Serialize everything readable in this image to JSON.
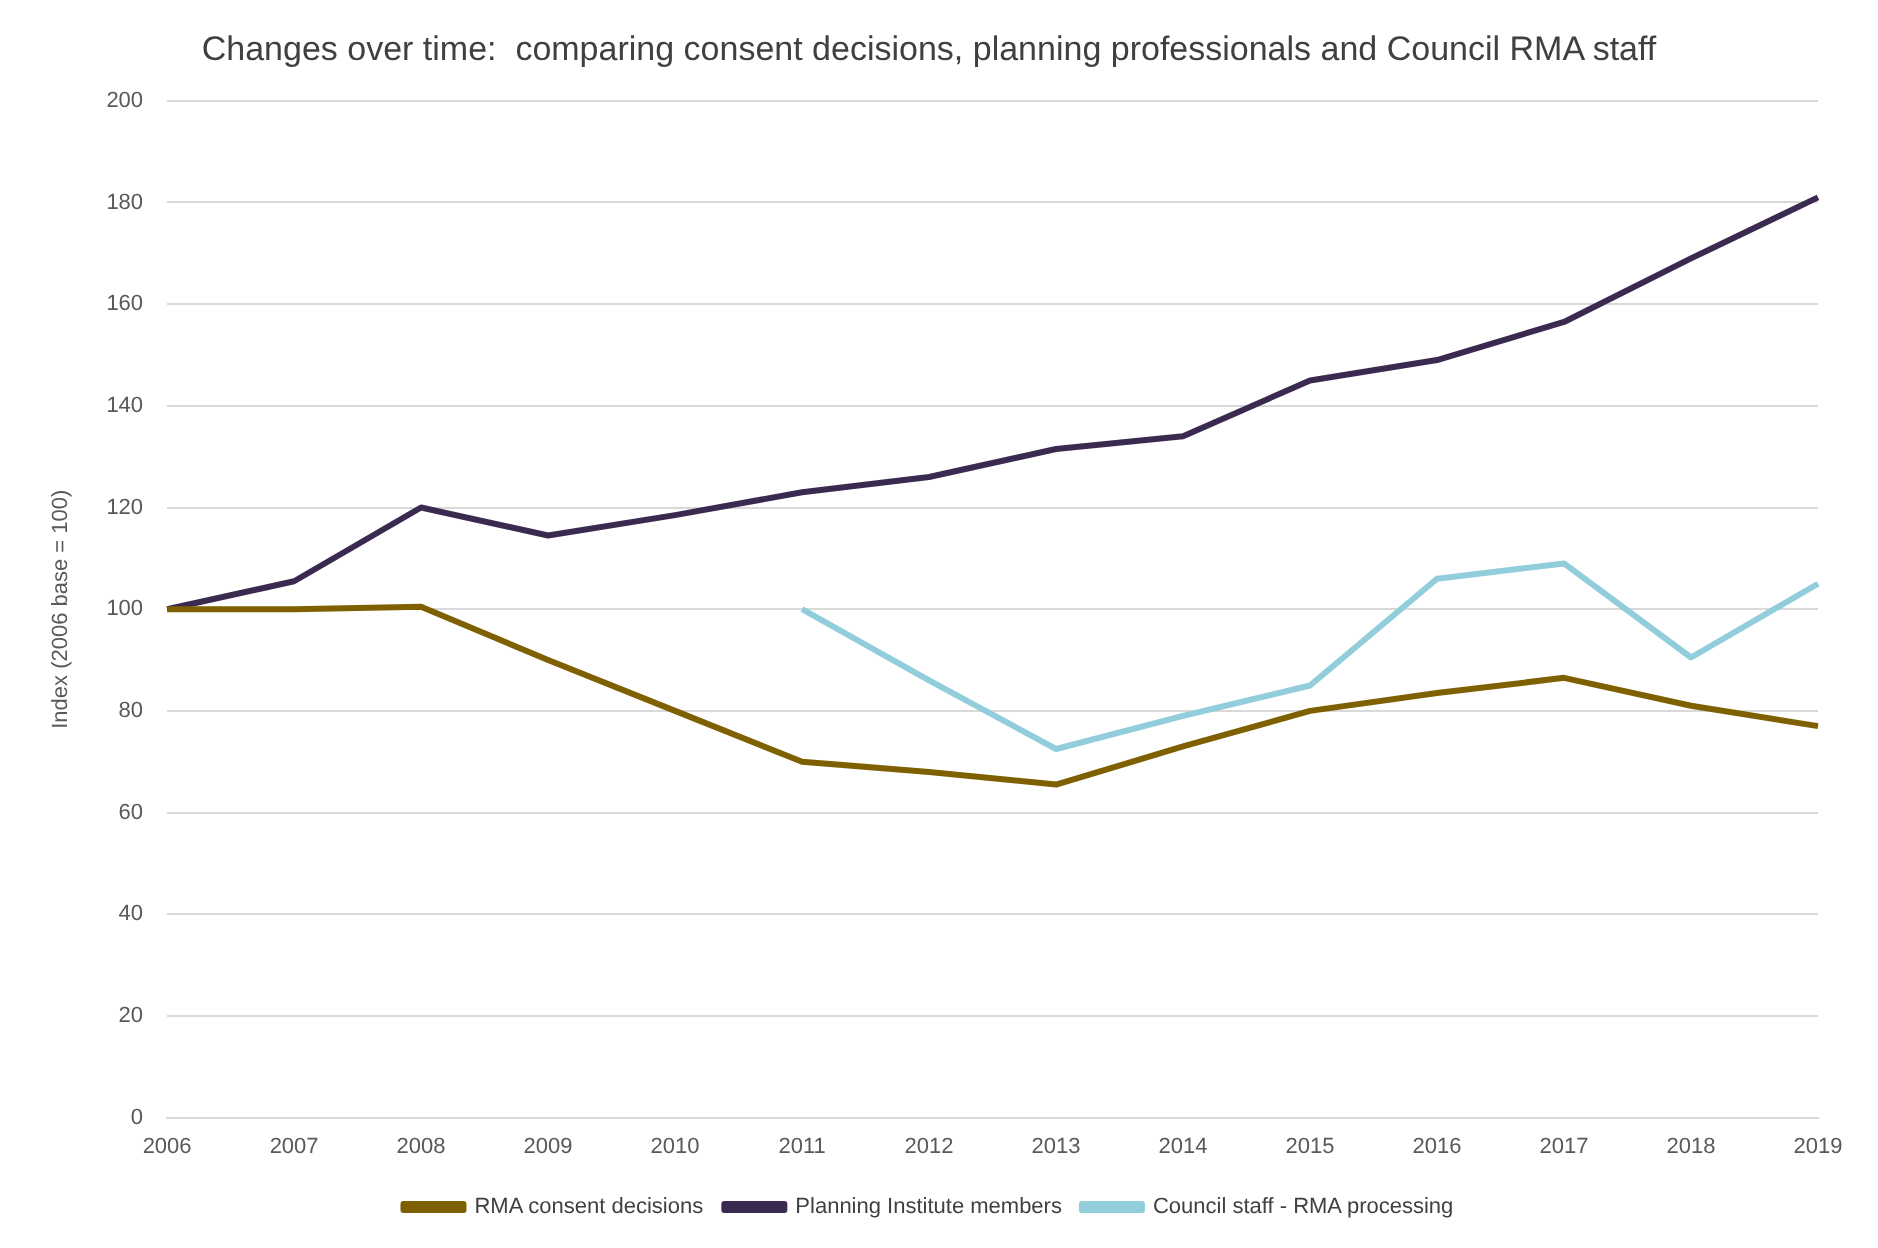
{
  "chart_data": {
    "type": "line",
    "title": "Changes over time:  comparing consent decisions, planning professionals and Council RMA staff",
    "ylabel": "Index (2006 base = 100)",
    "categories": [
      "2006",
      "2007",
      "2008",
      "2009",
      "2010",
      "2011",
      "2012",
      "2013",
      "2014",
      "2015",
      "2016",
      "2017",
      "2018",
      "2019"
    ],
    "series": [
      {
        "name": "RMA consent decisions",
        "color": "#7f6000",
        "values": [
          100,
          100,
          100.5,
          90,
          80,
          70,
          68,
          65.5,
          73,
          80,
          83.5,
          86.5,
          81,
          77
        ]
      },
      {
        "name": "Planning Institute members",
        "color": "#3b2a4f",
        "values": [
          100,
          105.5,
          120,
          114.5,
          118.5,
          123,
          126,
          131.5,
          134,
          145,
          149,
          156.5,
          169,
          181
        ]
      },
      {
        "name": "Council staff - RMA processing",
        "color": "#92cddc",
        "values": [
          null,
          null,
          null,
          null,
          null,
          100,
          86,
          72.5,
          79,
          85,
          106,
          109,
          90.5,
          105
        ]
      }
    ],
    "ylim": [
      0,
      200
    ],
    "yticks": [
      0,
      20,
      40,
      60,
      80,
      100,
      120,
      140,
      160,
      180,
      200
    ],
    "grid": "y",
    "legend": "bottom",
    "marker": "none",
    "line_style": "solid"
  }
}
